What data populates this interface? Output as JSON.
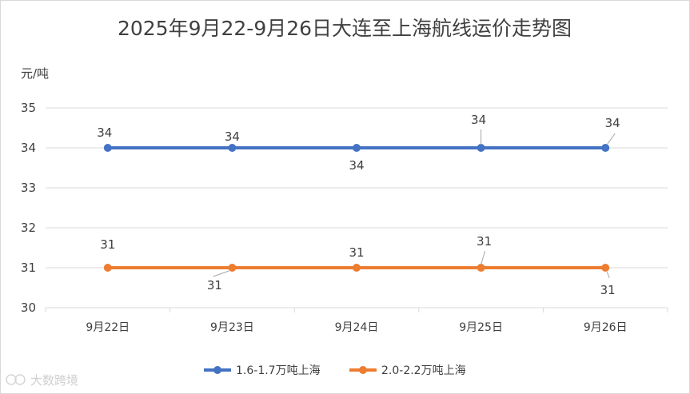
{
  "chart_data": {
    "type": "line",
    "title": "2025年9月22-9月26日大连至上海航线运价走势图",
    "unit_label": "元/吨",
    "categories": [
      "9月22日",
      "9月23日",
      "9月24日",
      "9月25日",
      "9月26日"
    ],
    "y_ticks": [
      "30",
      "31",
      "32",
      "33",
      "34",
      "35"
    ],
    "ylim": [
      30,
      35
    ],
    "grid": true,
    "legend_position": "bottom",
    "series": [
      {
        "name": "1.6-1.7万吨上海",
        "color": "#4472C4",
        "values": [
          34,
          34,
          34,
          34,
          34
        ],
        "labels": [
          "34",
          "34",
          "34",
          "34",
          "34"
        ]
      },
      {
        "name": "2.0-2.2万吨上海",
        "color": "#ED7D31",
        "values": [
          31,
          31,
          31,
          31,
          31
        ],
        "labels": [
          "31",
          "31",
          "31",
          "31",
          "31"
        ]
      }
    ]
  },
  "watermark": "大数跨境",
  "colors": {
    "grid": "#d9d9d9",
    "text": "#404040",
    "leader": "#a6a6a6"
  }
}
